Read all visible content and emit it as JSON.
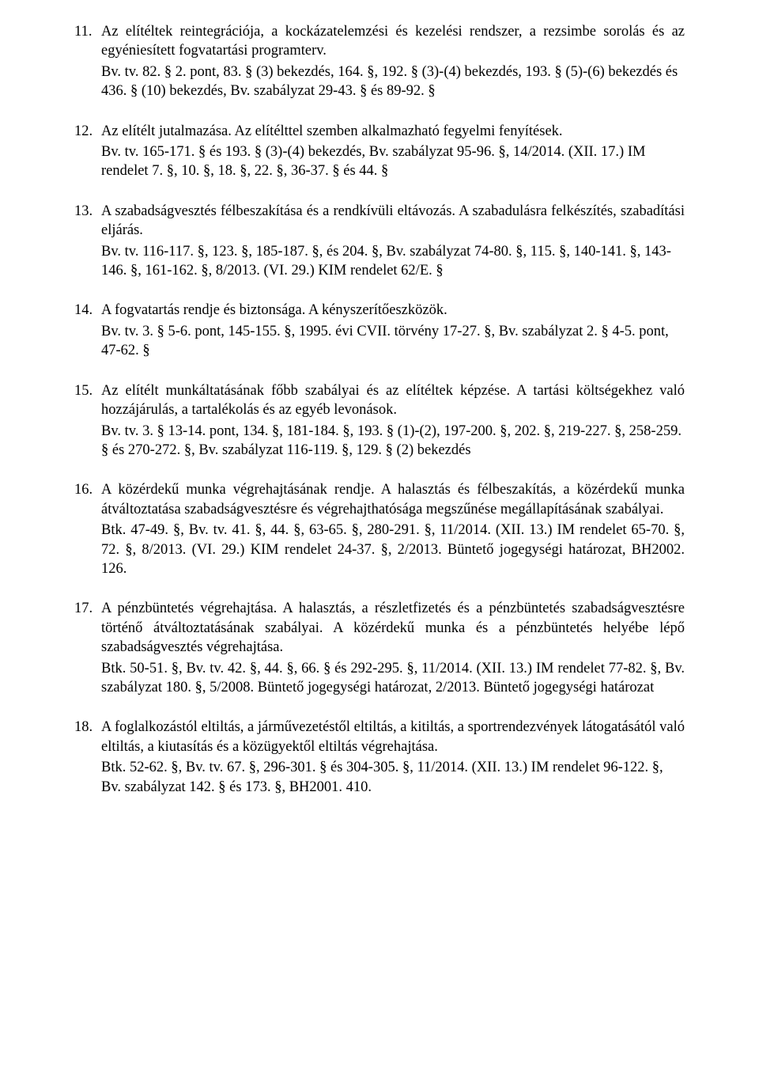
{
  "items": [
    {
      "num": "11.",
      "title": "Az elítéltek reintegrációja, a kockázatelemzési és kezelési rendszer, a rezsimbe sorolás és az egyéniesített fogvatartási programterv.",
      "title_justify": true,
      "ref": "Bv. tv. 82. § 2. pont, 83. § (3) bekezdés, 164. §, 192. § (3)-(4) bekezdés, 193. § (5)-(6) bekezdés és 436. § (10) bekezdés, Bv. szabályzat 29-43. § és 89-92. §"
    },
    {
      "num": "12.",
      "title": "Az elítélt jutalmazása. Az elítélttel szemben alkalmazható fegyelmi fenyítések.",
      "title_justify": false,
      "ref": "Bv. tv. 165-171. § és 193. § (3)-(4) bekezdés, Bv. szabályzat 95-96. §, 14/2014. (XII. 17.) IM rendelet 7. §, 10. §, 18. §, 22. §, 36-37. § és 44. §"
    },
    {
      "num": "13.",
      "title": "A szabadságvesztés félbeszakítása és a rendkívüli eltávozás. A szabadulásra felkészítés, szabadítási eljárás.",
      "title_justify": true,
      "ref": "Bv. tv. 116-117. §, 123. §, 185-187. §, és 204. §, Bv. szabályzat 74-80. §, 115. §, 140-141. §, 143-146. §, 161-162. §, 8/2013. (VI. 29.) KIM rendelet 62/E. §"
    },
    {
      "num": "14.",
      "title": "A fogvatartás rendje és biztonsága. A kényszerítőeszközök.",
      "title_justify": false,
      "ref": "Bv. tv. 3. § 5-6. pont, 145-155. §, 1995. évi CVII. törvény 17-27. §, Bv. szabályzat 2. § 4-5. pont, 47-62. §"
    },
    {
      "num": "15.",
      "title": "Az elítélt munkáltatásának főbb szabályai és az elítéltek képzése. A tartási költségekhez való hozzájárulás, a tartalékolás és az egyéb levonások.",
      "title_justify": true,
      "ref": "Bv. tv. 3. § 13-14. pont, 134. §, 181-184. §, 193. § (1)-(2), 197-200. §, 202. §, 219-227. §, 258-259. § és 270-272. §, Bv. szabályzat 116-119. §, 129. § (2) bekezdés"
    },
    {
      "num": "16.",
      "title": "A közérdekű munka végrehajtásának rendje. A halasztás és félbeszakítás, a közérdekű munka átváltoztatása szabadságvesztésre és végrehajthatósága megszűnése megállapításának szabályai.",
      "title_justify": true,
      "ref": "Btk. 47-49. §, Bv. tv. 41. §, 44. §, 63-65. §, 280-291. §, 11/2014. (XII. 13.) IM rendelet 65-70. §, 72. §, 8/2013. (VI. 29.) KIM rendelet 24-37. §, 2/2013. Büntető jogegységi határozat, BH2002. 126.",
      "ref_justify": true
    },
    {
      "num": "17.",
      "title": "A pénzbüntetés végrehajtása. A halasztás, a részletfizetés és a pénzbüntetés szabadságvesztésre történő átváltoztatásának szabályai. A közérdekű munka és a pénzbüntetés helyébe lépő szabadságvesztés végrehajtása.",
      "title_justify": true,
      "ref": "Btk. 50-51. §, Bv. tv. 42. §, 44. §, 66. § és 292-295. §, 11/2014. (XII. 13.) IM rendelet 77-82. §, Bv. szabályzat 180. §, 5/2008. Büntető jogegységi határozat, 2/2013. Büntető jogegységi határozat",
      "ref_justify": true
    },
    {
      "num": "18.",
      "title": "A foglalkozástól eltiltás, a járművezetéstől eltiltás, a kitiltás, a sportrendezvények látogatásától való eltiltás, a kiutasítás és a közügyektől eltiltás végrehajtása.",
      "title_justify": true,
      "ref": "Btk. 52-62. §, Bv. tv. 67. §, 296-301. § és 304-305. §, 11/2014. (XII. 13.) IM rendelet 96-122. §, Bv. szabályzat 142. § és 173. §, BH2001. 410."
    }
  ]
}
